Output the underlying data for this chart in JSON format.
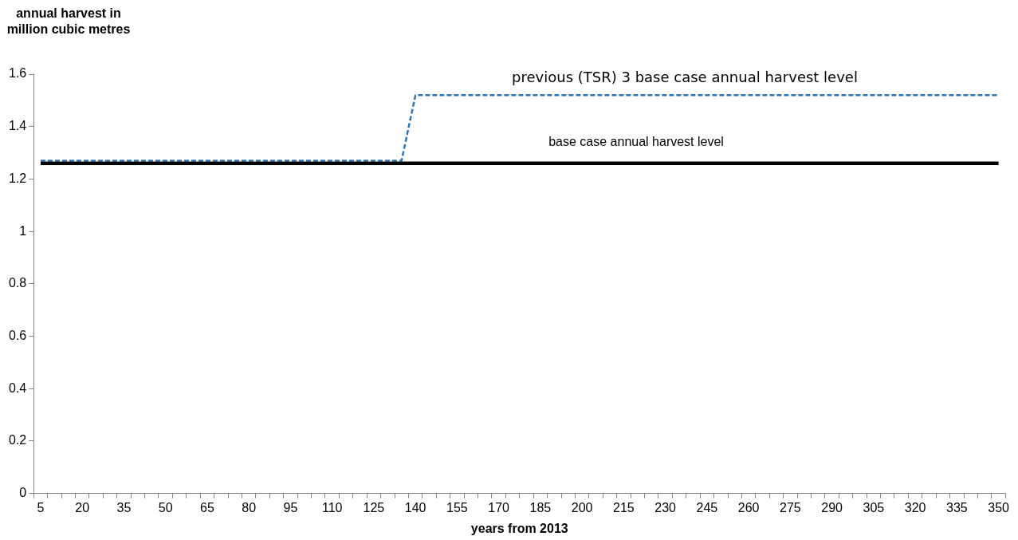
{
  "chart_data": {
    "type": "line",
    "xlabel": "years from 2013",
    "ylabel": "annual harvest in million cubic metres",
    "categories": [
      "5",
      null,
      null,
      "20",
      null,
      null,
      "35",
      null,
      null,
      "50",
      null,
      null,
      "65",
      null,
      null,
      "80",
      null,
      null,
      "95",
      null,
      null,
      "110",
      null,
      null,
      "125",
      null,
      null,
      "140",
      null,
      null,
      "155",
      null,
      null,
      "170",
      null,
      null,
      "185",
      null,
      null,
      "200",
      null,
      null,
      "215",
      null,
      null,
      "230",
      null,
      null,
      "245",
      null,
      null,
      "260",
      null,
      null,
      "275",
      null,
      null,
      "290",
      null,
      null,
      "305",
      null,
      null,
      "320",
      null,
      null,
      "335",
      null,
      null,
      "350"
    ],
    "series": [
      {
        "name": "previous (TSR) 3 base case annual harvest level",
        "color": "#2e75b6",
        "line_style": "dashed",
        "values": [
          1.27,
          1.27,
          1.27,
          1.27,
          1.27,
          1.27,
          1.27,
          1.27,
          1.27,
          1.27,
          1.27,
          1.27,
          1.27,
          1.27,
          1.27,
          1.27,
          1.27,
          1.27,
          1.27,
          1.27,
          1.27,
          1.27,
          1.27,
          1.27,
          1.27,
          1.27,
          1.27,
          1.52,
          1.52,
          1.52,
          1.52,
          1.52,
          1.52,
          1.52,
          1.52,
          1.52,
          1.52,
          1.52,
          1.52,
          1.52,
          1.52,
          1.52,
          1.52,
          1.52,
          1.52,
          1.52,
          1.52,
          1.52,
          1.52,
          1.52,
          1.52,
          1.52,
          1.52,
          1.52,
          1.52,
          1.52,
          1.52,
          1.52,
          1.52,
          1.52,
          1.52,
          1.52,
          1.52,
          1.52,
          1.52,
          1.52,
          1.52,
          1.52,
          1.52,
          1.52
        ]
      },
      {
        "name": "base case annual harvest level",
        "color": "#000000",
        "line_style": "solid",
        "values": [
          1.26,
          1.26,
          1.26,
          1.26,
          1.26,
          1.26,
          1.26,
          1.26,
          1.26,
          1.26,
          1.26,
          1.26,
          1.26,
          1.26,
          1.26,
          1.26,
          1.26,
          1.26,
          1.26,
          1.26,
          1.26,
          1.26,
          1.26,
          1.26,
          1.26,
          1.26,
          1.26,
          1.26,
          1.26,
          1.26,
          1.26,
          1.26,
          1.26,
          1.26,
          1.26,
          1.26,
          1.26,
          1.26,
          1.26,
          1.26,
          1.26,
          1.26,
          1.26,
          1.26,
          1.26,
          1.26,
          1.26,
          1.26,
          1.26,
          1.26,
          1.26,
          1.26,
          1.26,
          1.26,
          1.26,
          1.26,
          1.26,
          1.26,
          1.26,
          1.26,
          1.26,
          1.26,
          1.26,
          1.26,
          1.26,
          1.26,
          1.26,
          1.26,
          1.26,
          1.26
        ]
      }
    ],
    "ylim": [
      0,
      1.6
    ],
    "yticks": [
      0,
      0.2,
      0.4,
      0.6,
      0.8,
      1,
      1.2,
      1.4,
      1.6
    ],
    "grid": false,
    "legend": false,
    "marker": "none"
  }
}
